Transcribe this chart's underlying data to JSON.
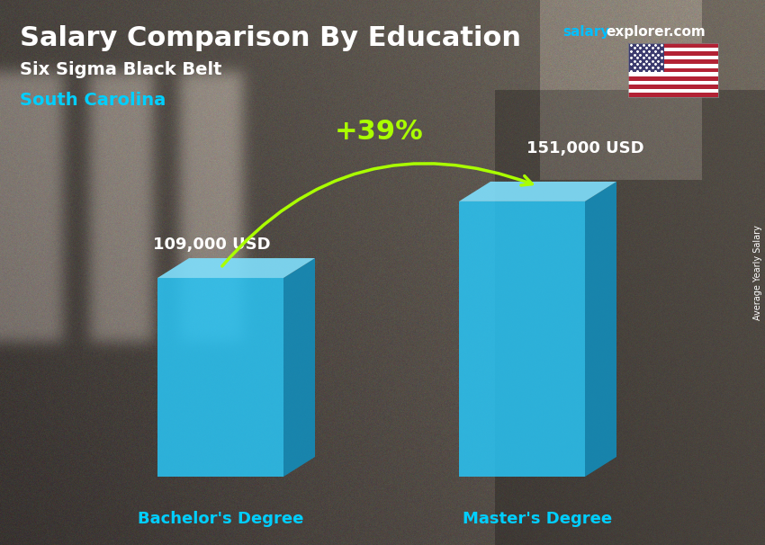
{
  "title_main": "Salary Comparison By Education",
  "title_salary": "salary",
  "title_explorer": "explorer.com",
  "subtitle1": "Six Sigma Black Belt",
  "subtitle2": "South Carolina",
  "categories": [
    "Bachelor's Degree",
    "Master's Degree"
  ],
  "values": [
    109000,
    151000
  ],
  "value_labels": [
    "109,000 USD",
    "151,000 USD"
  ],
  "pct_change": "+39%",
  "bar_color_face": "#29C5F6",
  "bar_color_top": "#7FDDFA",
  "bar_color_side": "#1090C0",
  "bar_alpha": 0.85,
  "bg_dark": "#3a3a3a",
  "bg_light": "#7a7a7a",
  "title_color": "#FFFFFF",
  "subtitle1_color": "#FFFFFF",
  "subtitle2_color": "#00CFFF",
  "value_label_color": "#FFFFFF",
  "category_label_color": "#00CFFF",
  "pct_color": "#AAFF00",
  "arrow_color": "#AAFF00",
  "salary_color": "#00BFFF",
  "explorer_color": "#FFFFFF",
  "ylabel_text": "Average Yearly Salary",
  "ylabel_color": "#FFFFFF",
  "fig_width": 8.5,
  "fig_height": 6.06,
  "dpi": 100
}
